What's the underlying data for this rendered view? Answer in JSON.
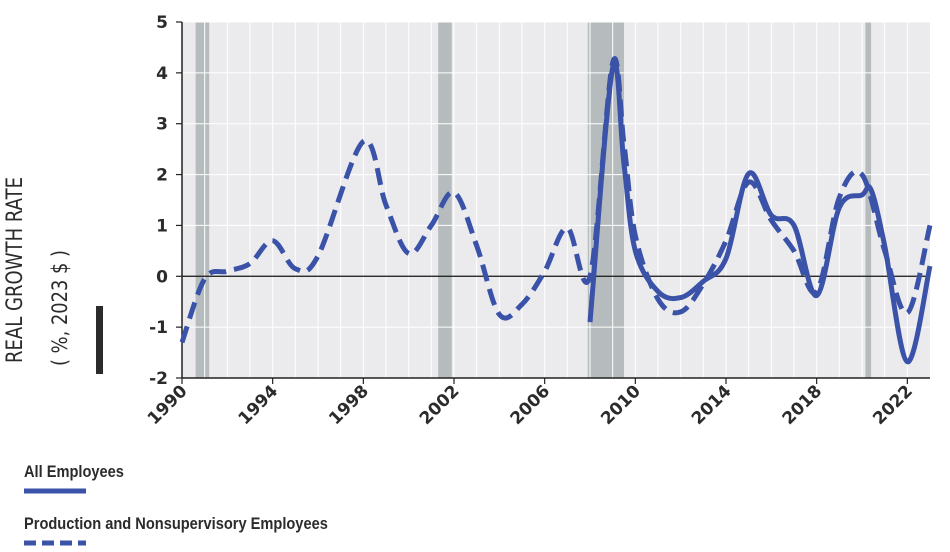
{
  "chart_data": {
    "type": "line",
    "ylabel": "REAL GROWTH RATE",
    "ylabel_sub": "( %, 2023 $ )",
    "xlim": [
      1990,
      2023
    ],
    "ylim": [
      -2,
      5
    ],
    "y_ticks": [
      "5",
      "4",
      "3",
      "2",
      "1",
      "0",
      "-1",
      "-2"
    ],
    "x_ticks": [
      "1990",
      "1994",
      "1998",
      "2002",
      "2006",
      "2010",
      "2014",
      "2018",
      "2022"
    ],
    "grid": true,
    "legend_position": "bottom-left",
    "recessions": [
      [
        1990.6,
        1991.2
      ],
      [
        2001.3,
        2001.9
      ],
      [
        2007.9,
        2009.5
      ],
      [
        2020.15,
        2020.4
      ]
    ],
    "series": [
      {
        "name": "All Employees",
        "style": "solid",
        "color": "#3a52a8",
        "points": [
          [
            2008.0,
            -0.9
          ],
          [
            2009.0,
            4.1
          ],
          [
            2009.5,
            2.2
          ],
          [
            2010.0,
            0.5
          ],
          [
            2011.0,
            -0.3
          ],
          [
            2012.0,
            -0.42
          ],
          [
            2013.0,
            -0.1
          ],
          [
            2014.0,
            0.35
          ],
          [
            2015.0,
            2.02
          ],
          [
            2016.0,
            1.2
          ],
          [
            2017.0,
            1.0
          ],
          [
            2018.0,
            -0.38
          ],
          [
            2019.0,
            1.35
          ],
          [
            2020.0,
            1.6
          ],
          [
            2020.4,
            1.7
          ],
          [
            2021.0,
            0.6
          ],
          [
            2022.0,
            -1.68
          ],
          [
            2023.0,
            0.2
          ]
        ]
      },
      {
        "name": "Production and Nonsupervisory Employees",
        "style": "dashed",
        "color": "#3a52a8",
        "points": [
          [
            1990.0,
            -1.3
          ],
          [
            1991.0,
            -0.05
          ],
          [
            1992.0,
            0.1
          ],
          [
            1993.0,
            0.25
          ],
          [
            1994.0,
            0.7
          ],
          [
            1995.0,
            0.15
          ],
          [
            1996.0,
            0.4
          ],
          [
            1998.0,
            2.65
          ],
          [
            1999.0,
            1.4
          ],
          [
            2000.0,
            0.45
          ],
          [
            2001.0,
            1.0
          ],
          [
            2002.0,
            1.65
          ],
          [
            2003.0,
            0.6
          ],
          [
            2004.0,
            -0.75
          ],
          [
            2005.0,
            -0.55
          ],
          [
            2006.0,
            0.1
          ],
          [
            2007.0,
            0.95
          ],
          [
            2008.0,
            0.0
          ],
          [
            2009.0,
            4.2
          ],
          [
            2009.5,
            2.6
          ],
          [
            2010.0,
            0.8
          ],
          [
            2011.0,
            -0.45
          ],
          [
            2012.0,
            -0.7
          ],
          [
            2013.0,
            -0.15
          ],
          [
            2014.0,
            0.7
          ],
          [
            2015.0,
            1.85
          ],
          [
            2016.0,
            1.1
          ],
          [
            2017.0,
            0.5
          ],
          [
            2018.0,
            -0.3
          ],
          [
            2019.0,
            1.55
          ],
          [
            2020.0,
            2.0
          ],
          [
            2021.0,
            0.5
          ],
          [
            2022.0,
            -0.72
          ],
          [
            2023.0,
            1.0
          ]
        ]
      }
    ]
  },
  "legend": {
    "items": [
      {
        "label": "All Employees",
        "style": "solid",
        "color": "#3a52a8"
      },
      {
        "label": "Production and Nonsupervisory Employees",
        "style": "dashed",
        "color": "#3a52a8"
      }
    ]
  },
  "colors": {
    "plot_bg": "#ebebee",
    "recession": "#b6bcbe",
    "line": "#3a52a8",
    "axis": "#222222",
    "grid": "#ffffff"
  }
}
